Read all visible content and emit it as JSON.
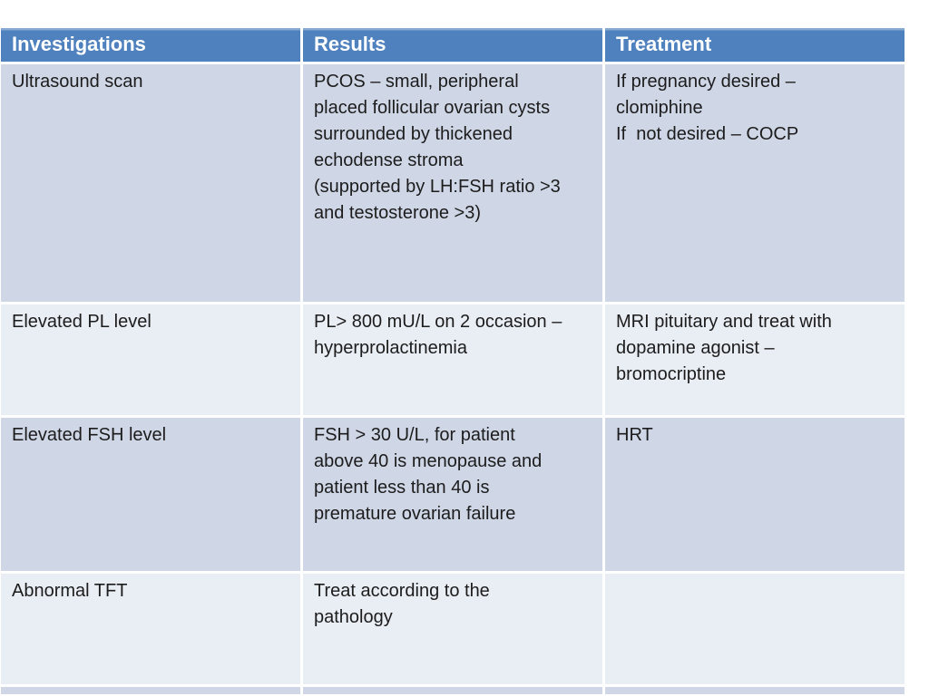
{
  "colors": {
    "header-blue": "#4e81bd",
    "header-highlight": "#87a9d2",
    "header-text": "#ffffff",
    "band-dark": "#cfd6e6",
    "band-light": "#e9edf4",
    "text-color": "#1c1c1c",
    "page-bg": "#ffffff"
  },
  "table": {
    "columns": [
      {
        "label": "Investigations"
      },
      {
        "label": "Results"
      },
      {
        "label": "Treatment"
      }
    ],
    "rows": [
      {
        "investigation": "Ultrasound scan",
        "result": "PCOS – small, peripheral\nplaced follicular ovarian cysts\nsurrounded by thickened\nechodense stroma\n(supported by LH:FSH ratio >3\nand testosterone >3)",
        "treatment": "If pregnancy desired –\nclomiphine\nIf  not desired – COCP"
      },
      {
        "investigation": "Elevated PL level",
        "result": "PL> 800 mU/L on 2 occasion –\nhyperprolactinemia",
        "treatment": "MRI pituitary and treat with\ndopamine agonist –\nbromocriptine"
      },
      {
        "investigation": "Elevated FSH level",
        "result": "FSH > 30 U/L, for patient\nabove 40 is menopause and\npatient less than 40 is\npremature ovarian failure",
        "treatment": "HRT"
      },
      {
        "investigation": "Abnormal TFT",
        "result": "Treat according to the\npathology",
        "treatment": ""
      }
    ]
  }
}
